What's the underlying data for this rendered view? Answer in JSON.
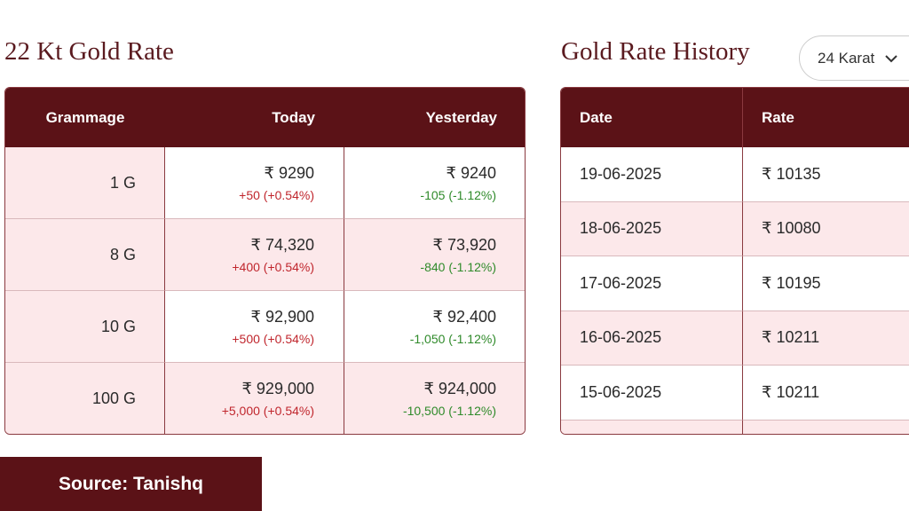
{
  "rate_panel": {
    "title": "22 Kt Gold Rate",
    "headers": [
      "Grammage",
      "Today",
      "Yesterday"
    ],
    "rows": [
      {
        "grammage": "1 G",
        "today": "₹ 9290",
        "today_change": "+50 (+0.54%)",
        "yesterday": "₹ 9240",
        "yesterday_change": "-105 (-1.12%)"
      },
      {
        "grammage": "8 G",
        "today": "₹ 74,320",
        "today_change": "+400 (+0.54%)",
        "yesterday": "₹ 73,920",
        "yesterday_change": "-840 (-1.12%)"
      },
      {
        "grammage": "10 G",
        "today": "₹ 92,900",
        "today_change": "+500 (+0.54%)",
        "yesterday": "₹ 92,400",
        "yesterday_change": "-1,050 (-1.12%)"
      },
      {
        "grammage": "100 G",
        "today": "₹ 929,000",
        "today_change": "+5,000 (+0.54%)",
        "yesterday": "₹ 924,000",
        "yesterday_change": "-10,500 (-1.12%)"
      }
    ]
  },
  "history_panel": {
    "title": "Gold Rate History",
    "dropdown": "24 Karat",
    "headers": [
      "Date",
      "Rate"
    ],
    "rows": [
      [
        "19-06-2025",
        "₹ 10135"
      ],
      [
        "18-06-2025",
        "₹ 10080"
      ],
      [
        "17-06-2025",
        "₹ 10195"
      ],
      [
        "16-06-2025",
        "₹ 10211"
      ],
      [
        "15-06-2025",
        "₹ 10211"
      ]
    ]
  },
  "source": "Source: Tanishq"
}
